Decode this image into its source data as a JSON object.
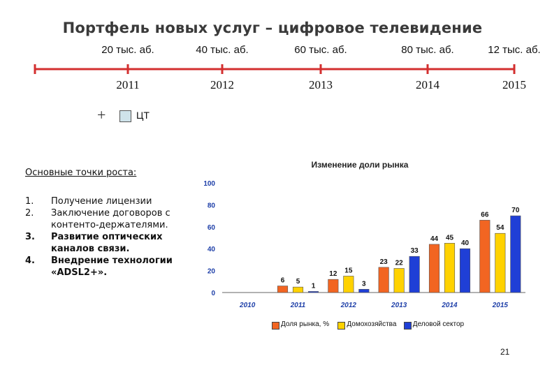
{
  "title": "Портфель новых услуг – цифровое телевидение",
  "timeline": {
    "points": [
      {
        "year": "2011",
        "subscribers": "20 тыс. аб."
      },
      {
        "year": "2012",
        "subscribers": "40 тыс. аб."
      },
      {
        "year": "2013",
        "subscribers": "60 тыс. аб."
      },
      {
        "year": "2014",
        "subscribers": "80 тыс. аб."
      },
      {
        "year": "2015",
        "subscribers": "12 тыс. аб."
      }
    ],
    "line_color": "#d32f2f"
  },
  "legend": {
    "plus": "+",
    "label": "ЦТ"
  },
  "growth": {
    "title": "Основные точки роста:",
    "items": [
      {
        "num": "1.",
        "text": "Получение лицензии"
      },
      {
        "num": "2.",
        "text": "Заключение договоров с контенто-держателями."
      },
      {
        "num": "3.",
        "text": "Развитие оптических каналов связи."
      },
      {
        "num": "4.",
        "text": "Внедрение технологии «ADSL2+»."
      }
    ]
  },
  "chart_data": {
    "type": "bar",
    "title": "Изменение доли рынка",
    "categories": [
      "2010",
      "2011",
      "2012",
      "2013",
      "2014",
      "2015"
    ],
    "series": [
      {
        "name": "Доля рынка, %",
        "color": "#f26522",
        "values": [
          null,
          6,
          12,
          23,
          44,
          66
        ]
      },
      {
        "name": "Домохозяйства",
        "color": "#ffd200",
        "values": [
          null,
          5,
          15,
          22,
          45,
          54
        ]
      },
      {
        "name": "Деловой сектор",
        "color": "#1f3fd6",
        "values": [
          null,
          1,
          3,
          33,
          40,
          70
        ]
      }
    ],
    "ylim": [
      0,
      100
    ],
    "yticks": [
      0,
      20,
      40,
      60,
      80,
      100
    ],
    "grid": false,
    "legend_position": "bottom",
    "tick_color": "#1e3fa8"
  },
  "page_number": "21"
}
